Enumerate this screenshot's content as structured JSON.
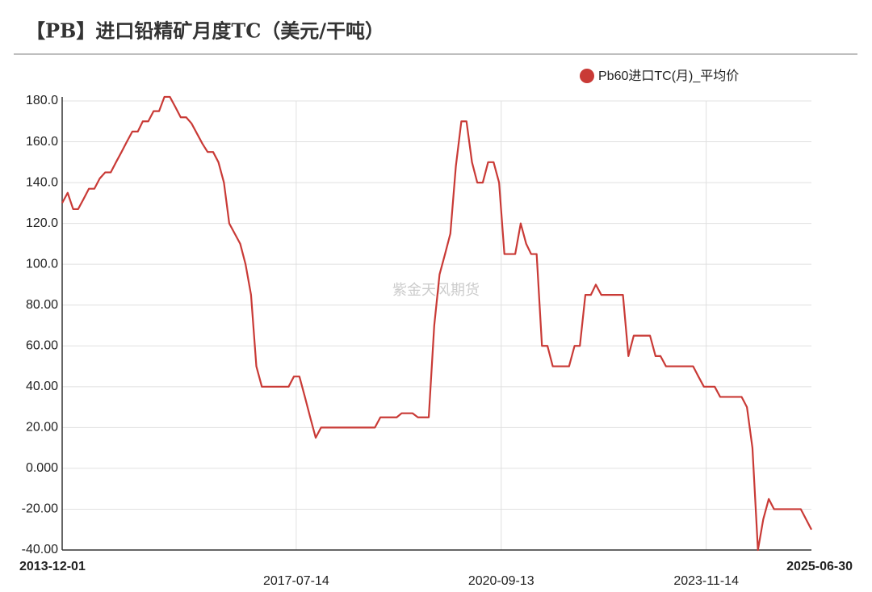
{
  "chart_data": {
    "type": "line",
    "title": "【PB】进口铅精矿月度TC（美元/干吨）",
    "watermark": "紫金天风期货",
    "x": [
      "2013-12-01",
      "2014-01-01",
      "2014-02-01",
      "2014-03-01",
      "2014-04-01",
      "2014-05-01",
      "2014-06-01",
      "2014-07-01",
      "2014-08-01",
      "2014-09-01",
      "2014-10-01",
      "2014-11-01",
      "2014-12-01",
      "2015-01-01",
      "2015-02-01",
      "2015-03-01",
      "2015-04-01",
      "2015-05-01",
      "2015-06-01",
      "2015-07-01",
      "2015-08-01",
      "2015-09-01",
      "2015-10-01",
      "2015-11-01",
      "2015-12-01",
      "2016-01-01",
      "2016-02-01",
      "2016-03-01",
      "2016-04-01",
      "2016-05-01",
      "2016-06-01",
      "2016-07-01",
      "2016-08-01",
      "2016-09-01",
      "2016-10-01",
      "2016-11-01",
      "2016-12-01",
      "2017-01-01",
      "2017-02-01",
      "2017-03-01",
      "2017-04-01",
      "2017-05-01",
      "2017-06-01",
      "2017-07-01",
      "2017-08-01",
      "2017-09-01",
      "2017-10-01",
      "2017-11-01",
      "2017-12-01",
      "2018-01-01",
      "2018-02-01",
      "2018-03-01",
      "2018-04-01",
      "2018-05-01",
      "2018-06-01",
      "2018-07-01",
      "2018-08-01",
      "2018-09-01",
      "2018-10-01",
      "2018-11-01",
      "2018-12-01",
      "2019-01-01",
      "2019-02-01",
      "2019-03-01",
      "2019-04-01",
      "2019-05-01",
      "2019-06-01",
      "2019-07-01",
      "2019-08-01",
      "2019-09-01",
      "2019-10-01",
      "2019-11-01",
      "2019-12-01",
      "2020-01-01",
      "2020-02-01",
      "2020-03-01",
      "2020-04-01",
      "2020-05-01",
      "2020-06-01",
      "2020-07-01",
      "2020-08-01",
      "2020-09-01",
      "2020-10-01",
      "2020-11-01",
      "2020-12-01",
      "2021-01-01",
      "2021-02-01",
      "2021-03-01",
      "2021-04-01",
      "2021-05-01",
      "2021-06-01",
      "2021-07-01",
      "2021-08-01",
      "2021-09-01",
      "2021-10-01",
      "2021-11-01",
      "2021-12-01",
      "2022-01-01",
      "2022-02-01",
      "2022-03-01",
      "2022-04-01",
      "2022-05-01",
      "2022-06-01",
      "2022-07-01",
      "2022-08-01",
      "2022-09-01",
      "2022-10-01",
      "2022-11-01",
      "2022-12-01",
      "2023-01-01",
      "2023-02-01",
      "2023-03-01",
      "2023-04-01",
      "2023-05-01",
      "2023-06-01",
      "2023-07-01",
      "2023-08-01",
      "2023-09-01",
      "2023-10-01",
      "2023-11-01",
      "2023-12-01",
      "2024-01-01",
      "2024-02-01",
      "2024-03-01",
      "2024-04-01",
      "2024-05-01",
      "2024-06-01",
      "2024-07-01",
      "2024-08-01",
      "2024-09-01",
      "2024-10-01",
      "2024-11-01",
      "2024-12-01",
      "2025-01-01",
      "2025-02-01",
      "2025-03-01",
      "2025-04-01",
      "2025-05-01",
      "2025-06-30"
    ],
    "series": [
      {
        "name": "Pb60进口TC(月)_平均价",
        "color": "#c93a36",
        "values": [
          130,
          135,
          127,
          127,
          132,
          137,
          137,
          142,
          145,
          145,
          150,
          155,
          160,
          165,
          165,
          170,
          170,
          175,
          175,
          182,
          182,
          177,
          172,
          172,
          169,
          164,
          159,
          155,
          155,
          150,
          140,
          120,
          115,
          110,
          100,
          85,
          50,
          40,
          40,
          40,
          40,
          40,
          40,
          45,
          45,
          35,
          25,
          15,
          20,
          20,
          20,
          20,
          20,
          20,
          20,
          20,
          20,
          20,
          20,
          25,
          25,
          25,
          25,
          27,
          27,
          27,
          25,
          25,
          25,
          70,
          95,
          105,
          115,
          148,
          170,
          170,
          150,
          140,
          140,
          150,
          150,
          140,
          105,
          105,
          105,
          120,
          110,
          105,
          105,
          60,
          60,
          50,
          50,
          50,
          50,
          60,
          60,
          85,
          85,
          90,
          85,
          85,
          85,
          85,
          85,
          55,
          65,
          65,
          65,
          65,
          55,
          55,
          50,
          50,
          50,
          50,
          50,
          50,
          45,
          40,
          40,
          40,
          35,
          35,
          35,
          35,
          35,
          30,
          10,
          -40,
          -25,
          -15,
          -20,
          -20,
          -20,
          -20,
          -20,
          -20,
          -30
        ]
      }
    ],
    "xlim": [
      "2013-12-01",
      "2025-06-30"
    ],
    "xticks": [
      "2013-12-01",
      "2017-07-14",
      "2020-09-13",
      "2023-11-14",
      "2025-06-30"
    ],
    "ylim": [
      -40,
      180
    ],
    "yticks": [
      {
        "value": -40,
        "label": "-40.00"
      },
      {
        "value": -20,
        "label": "-20.00"
      },
      {
        "value": 0,
        "label": "0.000"
      },
      {
        "value": 20,
        "label": "20.00"
      },
      {
        "value": 40,
        "label": "40.00"
      },
      {
        "value": 60,
        "label": "60.00"
      },
      {
        "value": 80,
        "label": "80.00"
      },
      {
        "value": 100,
        "label": "100.0"
      },
      {
        "value": 120,
        "label": "120.0"
      },
      {
        "value": 140,
        "label": "140.0"
      },
      {
        "value": 160,
        "label": "160.0"
      },
      {
        "value": 180,
        "label": "180.0"
      }
    ],
    "grid": true,
    "legend": "top-right"
  }
}
